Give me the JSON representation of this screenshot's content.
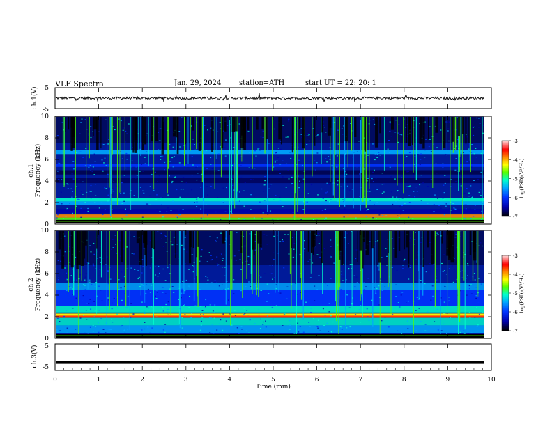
{
  "header": {
    "title": "VLF  Spectra",
    "date": "Jan. 29, 2024",
    "station": "station=ATH",
    "start_ut": "start  UT  =    22: 20: 1"
  },
  "colors": {
    "colormap": [
      "#000000",
      "#0000aa",
      "#0033ff",
      "#00aaff",
      "#00ffcc",
      "#55ff00",
      "#ffff00",
      "#ff8800",
      "#ff0000",
      "#ffdddd"
    ],
    "waveform": "#000000"
  },
  "chart_data": [
    {
      "type": "line",
      "id": "ch1",
      "ylabel": "ch.1(V)",
      "ylim": [
        -5,
        5
      ],
      "yticks": [
        "5",
        "-5"
      ],
      "xlim": [
        0,
        10
      ],
      "description_values": {
        "baseline": 0.0,
        "noise_amplitude": 1.2
      }
    },
    {
      "type": "heatmap",
      "id": "ch1-spec",
      "ylabel": "ch.1 Frequency (kHz)",
      "ylim": [
        0,
        10
      ],
      "yticks": [
        "0",
        "2",
        "4",
        "6",
        "8",
        "10"
      ],
      "xlim": [
        0,
        10
      ],
      "colorbar": {
        "label": "log(PSD)(V²/Hz)",
        "range": [
          -7,
          -3
        ],
        "ticks": [
          "-3",
          "-4",
          "-5",
          "-6",
          "-7"
        ]
      }
    },
    {
      "type": "heatmap",
      "id": "ch2-spec",
      "ylabel": "ch.2 Frequency (kHz)",
      "ylim": [
        0,
        10
      ],
      "yticks": [
        "0",
        "2",
        "4",
        "6",
        "8",
        "10"
      ],
      "xlim": [
        0,
        10
      ],
      "colorbar": {
        "label": "log(PSD)(V²/Hz)",
        "range": [
          -7,
          -3
        ],
        "ticks": [
          "-3",
          "-4",
          "-5",
          "-6",
          "-7"
        ]
      }
    },
    {
      "type": "line",
      "id": "ch3",
      "ylabel": "ch.3(V)",
      "ylim": [
        -5,
        5
      ],
      "yticks": [
        "5",
        "-5"
      ],
      "xlim": [
        0,
        10
      ],
      "xlabel": "Time  (min)",
      "xticks": [
        "0",
        "1",
        "2",
        "3",
        "4",
        "5",
        "6",
        "7",
        "8",
        "9",
        "10"
      ],
      "description_values": {
        "baseline": -2.0
      }
    }
  ]
}
